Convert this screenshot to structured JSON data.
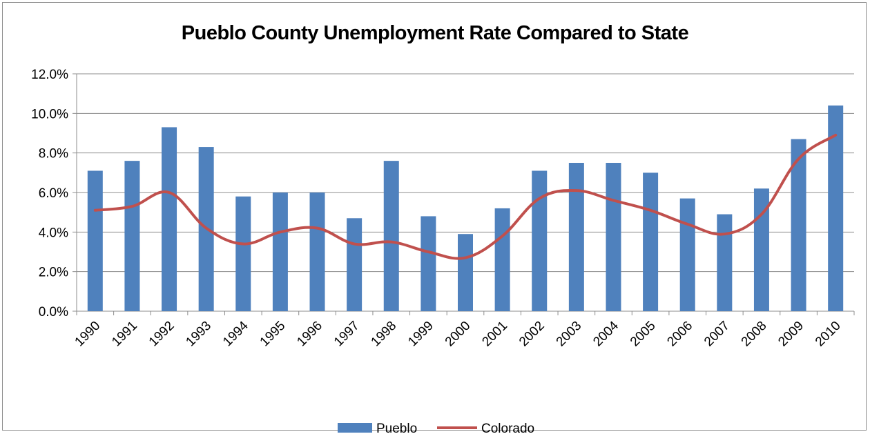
{
  "chart_data": {
    "type": "bar",
    "title": "Pueblo County Unemployment Rate Compared to State",
    "categories": [
      "1990",
      "1991",
      "1992",
      "1993",
      "1994",
      "1995",
      "1996",
      "1997",
      "1998",
      "1999",
      "2000",
      "2001",
      "2002",
      "2003",
      "2004",
      "2005",
      "2006",
      "2007",
      "2008",
      "2009",
      "2010"
    ],
    "series": [
      {
        "name": "Pueblo",
        "type": "bar",
        "color": "#4f81bd",
        "values": [
          7.1,
          7.6,
          9.3,
          8.3,
          5.8,
          6.0,
          6.0,
          4.7,
          7.6,
          4.8,
          3.9,
          5.2,
          7.1,
          7.5,
          7.5,
          7.0,
          5.7,
          4.9,
          6.2,
          8.7,
          10.4
        ]
      },
      {
        "name": "Colorado",
        "type": "line",
        "color": "#c0504d",
        "values": [
          5.1,
          5.3,
          6.0,
          4.2,
          3.4,
          4.0,
          4.2,
          3.4,
          3.5,
          3.0,
          2.7,
          3.8,
          5.7,
          6.1,
          5.6,
          5.1,
          4.4,
          3.9,
          4.9,
          7.7,
          8.9
        ]
      }
    ],
    "y_ticks": [
      "0.0%",
      "2.0%",
      "4.0%",
      "6.0%",
      "8.0%",
      "10.0%",
      "12.0%"
    ],
    "ylim": [
      0,
      12
    ],
    "y_unit": "%",
    "grid": true,
    "legend_position": "bottom"
  }
}
